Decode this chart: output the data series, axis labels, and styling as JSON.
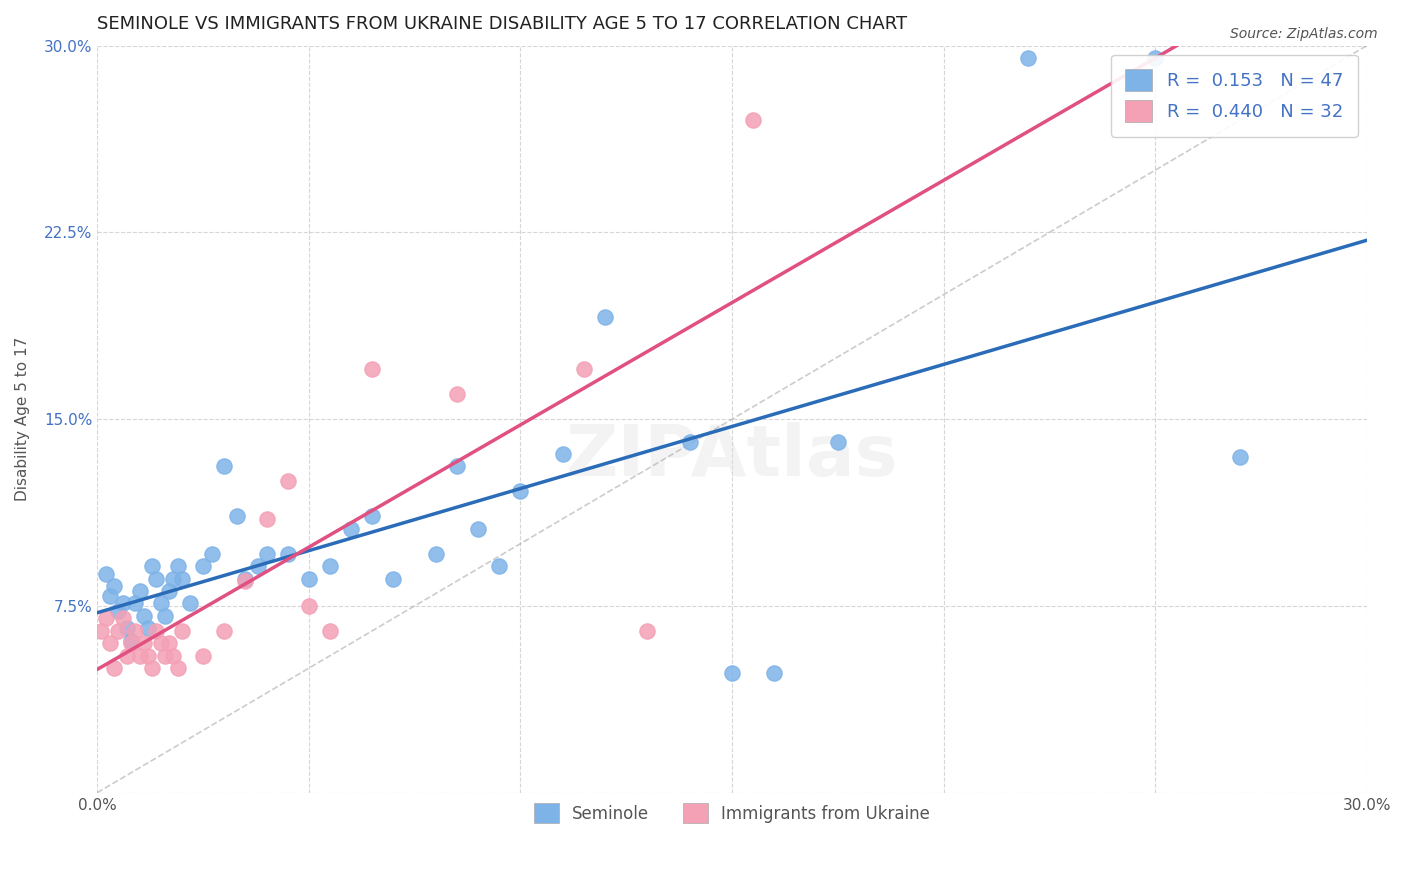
{
  "title": "SEMINOLE VS IMMIGRANTS FROM UKRAINE DISABILITY AGE 5 TO 17 CORRELATION CHART",
  "source": "Source: ZipAtlas.com",
  "ylabel": "Disability Age 5 to 17",
  "xlim": [
    0.0,
    0.3
  ],
  "ylim": [
    0.0,
    0.3
  ],
  "legend_label1": "Seminole",
  "legend_label2": "Immigrants from Ukraine",
  "R1": "0.153",
  "N1": "47",
  "R2": "0.440",
  "N2": "32",
  "blue_color": "#7EB3E8",
  "pink_color": "#F4A0B5",
  "blue_line_color": "#2B6CB8",
  "pink_line_color": "#E05080",
  "seminole_x": [
    0.002,
    0.003,
    0.004,
    0.005,
    0.006,
    0.007,
    0.008,
    0.009,
    0.01,
    0.011,
    0.012,
    0.013,
    0.014,
    0.015,
    0.016,
    0.017,
    0.018,
    0.019,
    0.02,
    0.022,
    0.025,
    0.027,
    0.03,
    0.033,
    0.035,
    0.038,
    0.04,
    0.045,
    0.05,
    0.055,
    0.06,
    0.065,
    0.07,
    0.08,
    0.085,
    0.09,
    0.095,
    0.1,
    0.11,
    0.12,
    0.14,
    0.15,
    0.16,
    0.175,
    0.22,
    0.25,
    0.27
  ],
  "seminole_y": [
    0.088,
    0.079,
    0.083,
    0.073,
    0.076,
    0.066,
    0.061,
    0.076,
    0.081,
    0.071,
    0.066,
    0.091,
    0.086,
    0.076,
    0.071,
    0.081,
    0.086,
    0.091,
    0.086,
    0.076,
    0.091,
    0.096,
    0.131,
    0.111,
    0.086,
    0.091,
    0.096,
    0.096,
    0.086,
    0.091,
    0.106,
    0.111,
    0.086,
    0.096,
    0.131,
    0.106,
    0.091,
    0.121,
    0.136,
    0.191,
    0.141,
    0.048,
    0.048,
    0.141,
    0.295,
    0.295,
    0.135
  ],
  "ukraine_x": [
    0.001,
    0.002,
    0.003,
    0.004,
    0.005,
    0.006,
    0.007,
    0.008,
    0.009,
    0.01,
    0.011,
    0.012,
    0.013,
    0.014,
    0.015,
    0.016,
    0.017,
    0.018,
    0.019,
    0.02,
    0.025,
    0.03,
    0.035,
    0.04,
    0.045,
    0.05,
    0.055,
    0.065,
    0.085,
    0.115,
    0.13,
    0.155
  ],
  "ukraine_y": [
    0.065,
    0.07,
    0.06,
    0.05,
    0.065,
    0.07,
    0.055,
    0.06,
    0.065,
    0.055,
    0.06,
    0.055,
    0.05,
    0.065,
    0.06,
    0.055,
    0.06,
    0.055,
    0.05,
    0.065,
    0.055,
    0.065,
    0.085,
    0.11,
    0.125,
    0.075,
    0.065,
    0.17,
    0.16,
    0.17,
    0.065,
    0.27
  ],
  "background_color": "#ffffff",
  "grid_color": "#cccccc"
}
